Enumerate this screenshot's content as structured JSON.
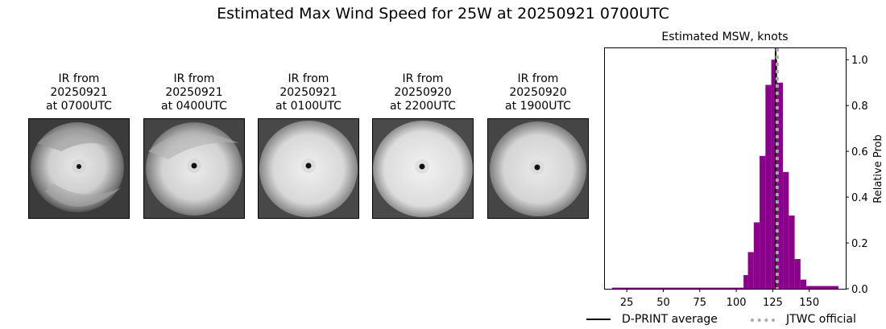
{
  "figure": {
    "title": "Estimated Max Wind Speed for 25W at 20250921 0700UTC"
  },
  "ir_images": [
    {
      "line1": "IR from",
      "date": "20250921",
      "time": "at 0700UTC"
    },
    {
      "line1": "IR from",
      "date": "20250921",
      "time": "at 0400UTC"
    },
    {
      "line1": "IR from",
      "date": "20250921",
      "time": "at 0100UTC"
    },
    {
      "line1": "IR from",
      "date": "20250920",
      "time": "at 2200UTC"
    },
    {
      "line1": "IR from",
      "date": "20250920",
      "time": "at 1900UTC"
    }
  ],
  "chart_data": {
    "type": "bar",
    "title": "Estimated MSW, knots",
    "xlabel": "",
    "ylabel": "Relative Prob",
    "xlim": [
      10,
      175
    ],
    "ylim": [
      0,
      1.05
    ],
    "xticks": [
      25,
      50,
      75,
      100,
      125,
      150
    ],
    "yticks": [
      0.0,
      0.2,
      0.4,
      0.6,
      0.8,
      1.0
    ],
    "ytick_labels": [
      "0.0",
      "0.2",
      "0.4",
      "0.6",
      "0.8",
      "1.0"
    ],
    "bar_color": "#8b008b",
    "bins": [
      {
        "x0": 15,
        "x1": 105,
        "value": 0.005
      },
      {
        "x0": 105,
        "x1": 108,
        "value": 0.06
      },
      {
        "x0": 108,
        "x1": 112,
        "value": 0.16
      },
      {
        "x0": 112,
        "x1": 116,
        "value": 0.29
      },
      {
        "x0": 116,
        "x1": 120,
        "value": 0.58
      },
      {
        "x0": 120,
        "x1": 124,
        "value": 0.89
      },
      {
        "x0": 124,
        "x1": 128,
        "value": 1.0
      },
      {
        "x0": 128,
        "x1": 132,
        "value": 0.9
      },
      {
        "x0": 132,
        "x1": 136,
        "value": 0.51
      },
      {
        "x0": 136,
        "x1": 140,
        "value": 0.32
      },
      {
        "x0": 140,
        "x1": 144,
        "value": 0.13
      },
      {
        "x0": 144,
        "x1": 148,
        "value": 0.04
      },
      {
        "x0": 148,
        "x1": 170,
        "value": 0.012
      }
    ],
    "dprint_average": 127,
    "jtwc_official": 128,
    "legend": {
      "placement": "bottom",
      "entries": [
        {
          "label": "D-PRINT average",
          "color": "#000000",
          "style": "solid"
        },
        {
          "label": "JTWC official",
          "color": "#a9a9a9",
          "style": "dotted"
        }
      ]
    }
  }
}
